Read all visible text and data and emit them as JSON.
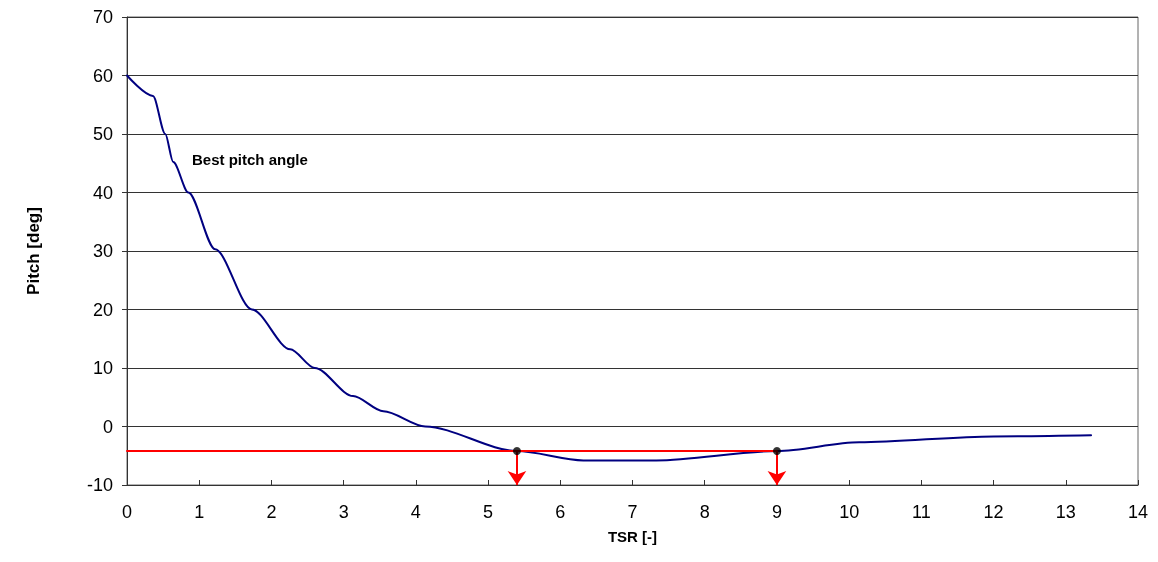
{
  "chart_data": {
    "type": "line",
    "xlabel": "TSR [-]",
    "ylabel": "Pitch [deg]",
    "xlim": [
      0,
      14
    ],
    "xticks": [
      0,
      1,
      2,
      3,
      4,
      5,
      6,
      7,
      8,
      9,
      10,
      11,
      12,
      13,
      14
    ],
    "ylim": [
      -10,
      70
    ],
    "yticks": [
      -10,
      0,
      10,
      20,
      30,
      40,
      50,
      60,
      70
    ],
    "grid": "y",
    "marker": "none",
    "line_style": "solid",
    "annotations": [
      "Best pitch angle"
    ],
    "series": [
      {
        "color": "#000080",
        "x": [
          0,
          0.36,
          0.53,
          0.64,
          0.85,
          1.22,
          1.73,
          2.26,
          2.6,
          3.13,
          3.55,
          4.13,
          5.4,
          6.32,
          7.33,
          9.0,
          10.14,
          12.0,
          13.35
        ],
        "values": [
          60,
          56.5,
          50,
          45.2,
          40,
          30.3,
          20,
          13.2,
          10,
          5.2,
          2.6,
          0,
          -4.2,
          -5.8,
          -5.8,
          -4.2,
          -2.7,
          -1.7,
          -1.5
        ]
      },
      {
        "color": "#ff0000",
        "x": [
          0,
          9
        ],
        "values": [
          -4.2,
          -4.2
        ]
      },
      {
        "type": "scatter",
        "color": "#000000",
        "marker": "circle",
        "x": [
          5.4,
          9.0
        ],
        "values": [
          -4.2,
          -4.2
        ]
      }
    ]
  }
}
